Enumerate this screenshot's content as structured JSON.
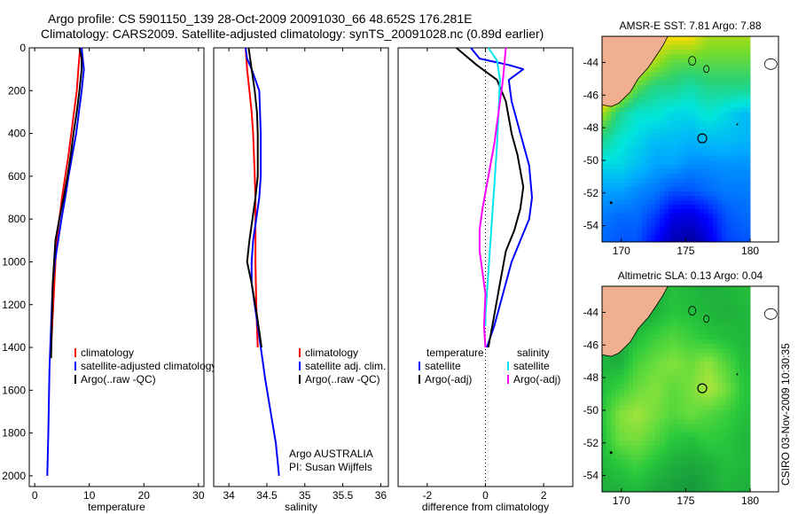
{
  "header": {
    "line1": "Argo profile: CS 5901150_139 28-Oct-2009 20091030_66 48.652S 176.281E",
    "line2": "Climatology: CARS2009. Satellite-adjusted climatology: synTS_20091028.nc (0.89d earlier)"
  },
  "footer": {
    "agency": "Argo AUSTRALIA",
    "pi": "PI: Susan Wijffels",
    "stamp": "CSIRO 03-Nov-2009 10:30:35"
  },
  "colors": {
    "climatology": "#ff0000",
    "satellite": "#0000ff",
    "argo": "#000000",
    "salinity_satellite": "#00e5ee",
    "salinity_argo": "#ff00ff",
    "land": "#f0b090"
  },
  "chart_data": [
    {
      "type": "line",
      "title": "",
      "xlabel": "temperature",
      "ylabel": "",
      "xlim": [
        -1,
        31
      ],
      "ylim": [
        2050,
        0
      ],
      "y_inverted": true,
      "xticks": [
        0,
        10,
        20,
        30
      ],
      "yticks": [
        0,
        200,
        400,
        600,
        800,
        1000,
        1200,
        1400,
        1600,
        1800,
        2000
      ],
      "legend": {
        "position": "bottom-right",
        "entries": [
          "climatology",
          "satellite-adjusted climatology",
          "Argo(..raw -QC)"
        ]
      },
      "series": [
        {
          "name": "climatology",
          "color_key": "climatology",
          "x": [
            8.3,
            8.0,
            7.7,
            7.2,
            6.7,
            6.2,
            5.6,
            5.0,
            4.5,
            4.0,
            3.6,
            3.2,
            2.9
          ],
          "y": [
            0,
            100,
            200,
            300,
            400,
            500,
            600,
            700,
            800,
            900,
            1100,
            1300,
            1450
          ]
        },
        {
          "name": "satellite-adjusted climatology",
          "color_key": "satellite",
          "x": [
            8.6,
            8.8,
            9.0,
            8.6,
            8.1,
            7.6,
            6.9,
            6.2,
            5.6,
            4.9,
            4.3,
            3.7,
            3.3,
            3.0,
            2.7,
            2.5,
            2.3
          ],
          "y": [
            0,
            50,
            100,
            200,
            300,
            400,
            500,
            600,
            700,
            800,
            900,
            1000,
            1100,
            1300,
            1500,
            1800,
            2000
          ]
        },
        {
          "name": "Argo(..raw -QC)",
          "color_key": "argo",
          "x": [
            8.2,
            8.6,
            8.6,
            8.2,
            7.7,
            7.1,
            6.6,
            6.0,
            5.3,
            4.5,
            3.8,
            3.3,
            3.0
          ],
          "y": [
            0,
            50,
            100,
            200,
            300,
            400,
            500,
            600,
            700,
            800,
            900,
            1100,
            1450
          ]
        }
      ]
    },
    {
      "type": "line",
      "title": "",
      "xlabel": "salinity",
      "ylabel": "",
      "xlim": [
        33.8,
        36.1
      ],
      "ylim": [
        2050,
        0
      ],
      "y_inverted": true,
      "xticks": [
        34,
        34.5,
        35,
        35.5,
        36
      ],
      "legend": {
        "position": "bottom-right",
        "entries": [
          "climatology",
          "satellite adj. clim.",
          "Argo(..raw -QC)"
        ]
      },
      "series": [
        {
          "name": "climatology",
          "color_key": "climatology",
          "x": [
            34.22,
            34.24,
            34.27,
            34.3,
            34.32,
            34.33,
            34.34,
            34.35,
            34.35,
            34.35,
            34.36,
            34.38
          ],
          "y": [
            0,
            100,
            200,
            300,
            400,
            500,
            600,
            700,
            800,
            1000,
            1200,
            1400
          ]
        },
        {
          "name": "satellite adj. clim.",
          "color_key": "satellite",
          "x": [
            34.22,
            34.24,
            34.3,
            34.4,
            34.42,
            34.42,
            34.4,
            34.36,
            34.32,
            34.3,
            34.3,
            34.36,
            34.42,
            34.48,
            34.55,
            34.62,
            34.66
          ],
          "y": [
            0,
            50,
            100,
            200,
            400,
            600,
            700,
            800,
            900,
            1000,
            1100,
            1250,
            1400,
            1550,
            1700,
            1850,
            2000
          ]
        },
        {
          "name": "Argo(..raw -QC)",
          "color_key": "argo",
          "x": [
            34.26,
            34.3,
            34.34,
            34.37,
            34.38,
            34.38,
            34.35,
            34.31,
            34.27,
            34.24,
            34.3,
            34.37,
            34.43
          ],
          "y": [
            0,
            100,
            200,
            300,
            400,
            600,
            700,
            800,
            900,
            1000,
            1100,
            1250,
            1400
          ]
        }
      ]
    },
    {
      "type": "line",
      "title": "",
      "xlabel": "difference from climatology",
      "ylabel": "",
      "xlim": [
        -3,
        3
      ],
      "ylim": [
        2050,
        0
      ],
      "y_inverted": true,
      "xticks": [
        -2,
        0,
        2
      ],
      "reference_line_x": 0,
      "legend": {
        "position": "bottom",
        "columns": [
          {
            "header": "temperature",
            "entries": [
              "satellite",
              "Argo(-adj)"
            ]
          },
          {
            "header": "salinity",
            "entries": [
              "satellite",
              "Argo(-adj)"
            ]
          }
        ]
      },
      "series": [
        {
          "name": "temperature satellite",
          "color_key": "satellite",
          "x": [
            -0.5,
            -0.2,
            0.8,
            1.3,
            0.8,
            0.9,
            1.2,
            1.5,
            1.6,
            1.5,
            1.2,
            0.9,
            0.6,
            0.3,
            0.05
          ],
          "y": [
            0,
            50,
            80,
            100,
            150,
            250,
            400,
            550,
            700,
            800,
            900,
            1000,
            1150,
            1300,
            1400
          ]
        },
        {
          "name": "temperature Argo(-adj)",
          "color_key": "argo",
          "x": [
            -1.0,
            -0.3,
            0.4,
            0.7,
            0.9,
            1.1,
            1.3,
            1.2,
            1.0,
            0.7,
            0.5,
            0.3,
            0.1
          ],
          "y": [
            0,
            80,
            150,
            250,
            400,
            500,
            650,
            750,
            850,
            950,
            1100,
            1250,
            1400
          ]
        },
        {
          "name": "salinity satellite",
          "color_key": "salinity_satellite",
          "x": [
            0.1,
            0.4,
            0.5,
            0.45,
            0.4,
            0.35,
            0.3,
            0.25,
            0.2,
            0.15,
            0.1,
            0.05,
            0.0,
            0.0
          ],
          "y": [
            0,
            60,
            150,
            300,
            450,
            550,
            650,
            750,
            850,
            950,
            1050,
            1150,
            1250,
            1300
          ]
        },
        {
          "name": "salinity Argo(-adj)",
          "color_key": "salinity_argo",
          "x": [
            0.7,
            0.6,
            0.45,
            0.3,
            0.1,
            -0.1,
            -0.2,
            -0.2,
            -0.1,
            0.0,
            -0.05,
            0.0
          ],
          "y": [
            0,
            150,
            300,
            450,
            600,
            750,
            850,
            950,
            1050,
            1150,
            1300,
            1400
          ]
        }
      ]
    },
    {
      "type": "heatmap",
      "title": "AMSR-E SST: 7.81 Argo: 7.88",
      "xlim": [
        168.5,
        182.2
      ],
      "ylim": [
        -55,
        -42.4
      ],
      "xticks": [
        170,
        175,
        180
      ],
      "yticks": [
        -44,
        -46,
        -48,
        -50,
        -52,
        -54
      ],
      "marker": {
        "lon": 176.281,
        "lat": -48.652
      },
      "grid": {
        "lon": [
          168.5,
          169.875,
          171.25,
          172.625,
          174.0,
          175.375,
          176.75,
          178.125,
          179.5
        ],
        "lat": [
          -42.4,
          -43.975,
          -45.55,
          -47.125,
          -48.7,
          -50.275,
          -51.85,
          -53.425,
          -55.0
        ],
        "values": [
          [
            17,
            16,
            14,
            13,
            13,
            13,
            12,
            12,
            12
          ],
          [
            16,
            14,
            13,
            12,
            11,
            11,
            11,
            11,
            11
          ],
          [
            15,
            13,
            11,
            10,
            10,
            9.5,
            10,
            10,
            10
          ],
          [
            12,
            10,
            9,
            9,
            8.5,
            8.5,
            9,
            8.5,
            8
          ],
          [
            10,
            9,
            8.5,
            8,
            8,
            7.8,
            8,
            8,
            7.8
          ],
          [
            8.5,
            8.5,
            8,
            7.5,
            7.5,
            7.2,
            7.2,
            7.3,
            7.3
          ],
          [
            7.5,
            7.5,
            7.2,
            7,
            6.5,
            6.5,
            6.8,
            7,
            7
          ],
          [
            7,
            6.8,
            6.8,
            6.2,
            5.2,
            5,
            5.6,
            6.5,
            6.8
          ],
          [
            6.8,
            6.5,
            6.5,
            5.5,
            4.5,
            4.2,
            5,
            6.2,
            6.5
          ]
        ]
      }
    },
    {
      "type": "heatmap",
      "title": "Altimetric SLA: 0.13 Argo: 0.04",
      "xlim": [
        168.5,
        182.2
      ],
      "ylim": [
        -55,
        -42.4
      ],
      "xticks": [
        170,
        175,
        180
      ],
      "yticks": [
        -44,
        -46,
        -48,
        -50,
        -52,
        -54
      ],
      "marker": {
        "lon": 176.281,
        "lat": -48.652
      },
      "grid": {
        "lon": [
          168.5,
          169.875,
          171.25,
          172.625,
          174.0,
          175.375,
          176.75,
          178.125,
          179.5
        ],
        "lat": [
          -42.4,
          -43.975,
          -45.55,
          -47.125,
          -48.7,
          -50.275,
          -51.85,
          -53.425,
          -55.0
        ],
        "values": [
          [
            0.05,
            0.04,
            0.02,
            0.03,
            0.05,
            0.04,
            0.03,
            0.04,
            0.05
          ],
          [
            0.04,
            0.03,
            0.01,
            0.03,
            0.06,
            0.05,
            0.04,
            0.03,
            0.04
          ],
          [
            0.03,
            0.02,
            0.05,
            0.08,
            0.1,
            0.08,
            0.06,
            0.05,
            0.04
          ],
          [
            0.04,
            0.03,
            0.09,
            0.12,
            0.14,
            0.12,
            0.15,
            0.1,
            0.05
          ],
          [
            0.05,
            0.08,
            0.12,
            0.14,
            0.11,
            0.13,
            0.17,
            0.13,
            0.06
          ],
          [
            0.06,
            0.14,
            0.16,
            0.13,
            0.1,
            0.12,
            0.1,
            0.08,
            0.05
          ],
          [
            0.05,
            0.12,
            0.13,
            0.1,
            0.06,
            0.05,
            0.07,
            0.06,
            0.04
          ],
          [
            0.04,
            0.06,
            0.08,
            0.05,
            0.03,
            0.02,
            0.03,
            0.05,
            0.04
          ],
          [
            0.03,
            0.03,
            0.04,
            0.02,
            0.01,
            0.0,
            0.02,
            0.04,
            0.03
          ]
        ]
      }
    }
  ]
}
